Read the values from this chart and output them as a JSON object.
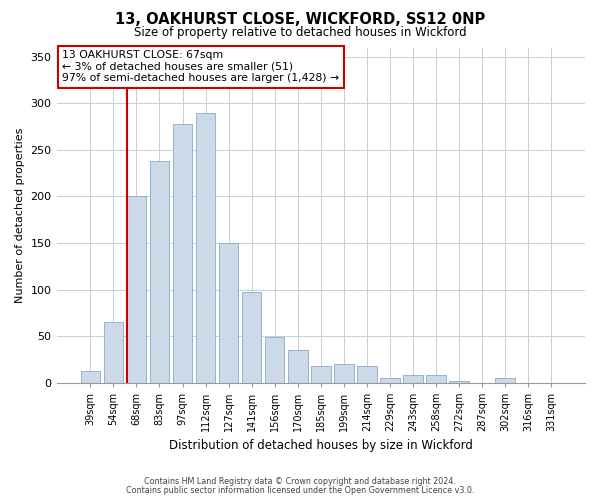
{
  "title": "13, OAKHURST CLOSE, WICKFORD, SS12 0NP",
  "subtitle": "Size of property relative to detached houses in Wickford",
  "xlabel": "Distribution of detached houses by size in Wickford",
  "ylabel": "Number of detached properties",
  "bar_labels": [
    "39sqm",
    "54sqm",
    "68sqm",
    "83sqm",
    "97sqm",
    "112sqm",
    "127sqm",
    "141sqm",
    "156sqm",
    "170sqm",
    "185sqm",
    "199sqm",
    "214sqm",
    "229sqm",
    "243sqm",
    "258sqm",
    "272sqm",
    "287sqm",
    "302sqm",
    "316sqm",
    "331sqm"
  ],
  "bar_values": [
    13,
    65,
    200,
    238,
    278,
    290,
    150,
    97,
    49,
    35,
    18,
    20,
    18,
    5,
    8,
    8,
    2,
    0,
    5,
    0,
    0
  ],
  "bar_color": "#ccd9e8",
  "bar_edge_color": "#8aaac8",
  "highlight_index": 2,
  "highlight_line_color": "#cc0000",
  "ylim": [
    0,
    360
  ],
  "yticks": [
    0,
    50,
    100,
    150,
    200,
    250,
    300,
    350
  ],
  "annotation_title": "13 OAKHURST CLOSE: 67sqm",
  "annotation_line1": "← 3% of detached houses are smaller (51)",
  "annotation_line2": "97% of semi-detached houses are larger (1,428) →",
  "annotation_box_color": "#ffffff",
  "annotation_box_edge": "#cc0000",
  "footer1": "Contains HM Land Registry data © Crown copyright and database right 2024.",
  "footer2": "Contains public sector information licensed under the Open Government Licence v3.0.",
  "background_color": "#ffffff",
  "grid_color": "#c0d0e0"
}
